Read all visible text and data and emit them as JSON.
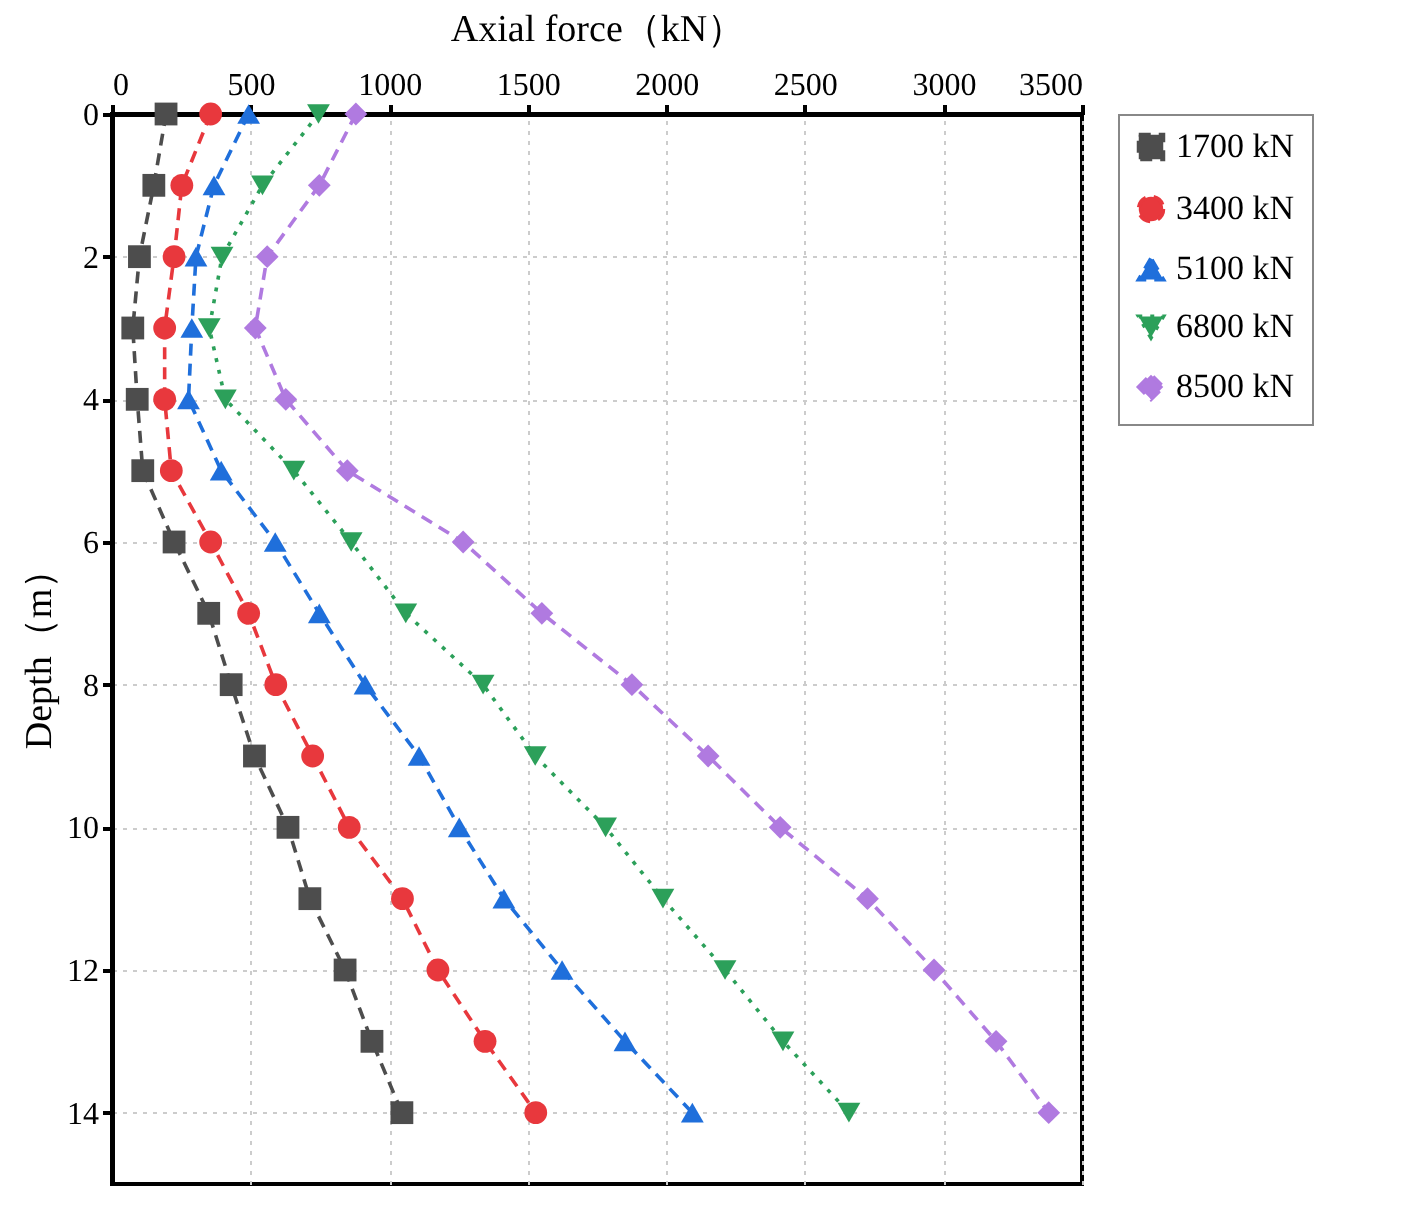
{
  "chart_data": {
    "type": "line",
    "xlabel": "Axial force（kN）",
    "ylabel": "Depth（m）",
    "xlim": [
      0,
      3500
    ],
    "xticks": [
      0,
      500,
      1000,
      1500,
      2000,
      2500,
      3000,
      3500
    ],
    "ylim": [
      15,
      0
    ],
    "yticks": [
      0,
      2,
      4,
      6,
      8,
      10,
      12,
      14
    ],
    "grid": true,
    "legend": "top right",
    "series": [
      {
        "name": "1700 kN",
        "color": "#4d4d4d",
        "marker": "square",
        "line_style": "dashed",
        "x": [
          195,
          151,
          99,
          75,
          91,
          111,
          224,
          349,
          430,
          514,
          635,
          714,
          841,
          938,
          1046
        ],
        "values": [
          0,
          1,
          2,
          3,
          4,
          5,
          6,
          7,
          8,
          9,
          10,
          11,
          12,
          13,
          14
        ]
      },
      {
        "name": "3400 kN",
        "color": "#e8383d",
        "marker": "circle",
        "line_style": "dashed",
        "x": [
          356,
          252,
          224,
          190,
          190,
          214,
          356,
          493,
          591,
          724,
          856,
          1048,
          1176,
          1346,
          1529
        ],
        "values": [
          0,
          1,
          2,
          3,
          4,
          5,
          6,
          7,
          8,
          9,
          10,
          11,
          12,
          13,
          14
        ]
      },
      {
        "name": "5100 kN",
        "color": "#1f6fdb",
        "marker": "triangle",
        "line_style": "dashed",
        "x": [
          493,
          368,
          303,
          288,
          276,
          394,
          589,
          748,
          913,
          1108,
          1253,
          1414,
          1624,
          1851,
          2094
        ],
        "values": [
          0,
          1,
          2,
          3,
          4,
          5,
          6,
          7,
          8,
          9,
          10,
          11,
          12,
          13,
          14
        ]
      },
      {
        "name": "6800 kN",
        "color": "#2ca05a",
        "marker": "triangle-down",
        "line_style": "dotted",
        "x": [
          745,
          543,
          397,
          351,
          409,
          656,
          863,
          1060,
          1339,
          1527,
          1781,
          1988,
          2212,
          2421,
          2659
        ],
        "values": [
          0,
          1,
          2,
          3,
          4,
          5,
          6,
          7,
          8,
          9,
          10,
          11,
          12,
          13,
          14
        ]
      },
      {
        "name": "8500 kN",
        "color": "#b07ae0",
        "marker": "diamond",
        "line_style": "dashed",
        "x": [
          880,
          748,
          560,
          517,
          627,
          849,
          1267,
          1551,
          1876,
          2151,
          2411,
          2726,
          2966,
          3190,
          3380
        ],
        "values": [
          0,
          1,
          2,
          3,
          4,
          5,
          6,
          7,
          8,
          9,
          10,
          11,
          12,
          13,
          14
        ]
      }
    ]
  }
}
